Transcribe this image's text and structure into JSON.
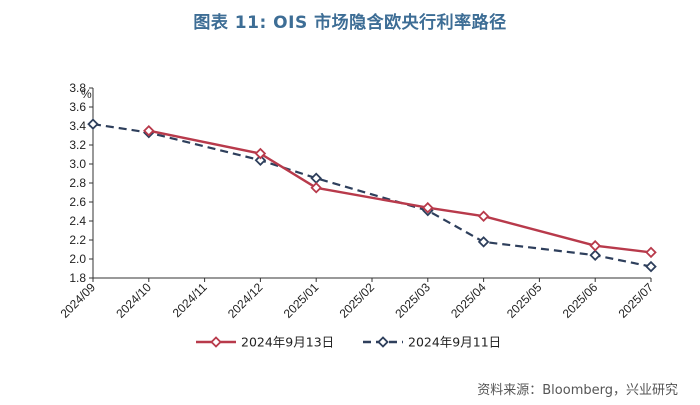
{
  "title": "图表 11: OIS 市场隐含欧央行利率路径",
  "source": "资料来源：Bloomberg，兴业研究",
  "chart_data": {
    "type": "line",
    "title": "图表 11: OIS 市场隐含欧央行利率路径",
    "ylabel": "%",
    "xlabel": "",
    "categories": [
      "2024/09",
      "2024/10",
      "2024/11",
      "2024/12",
      "2025/01",
      "2025/02",
      "2025/03",
      "2025/04",
      "2025/05",
      "2025/06",
      "2025/07"
    ],
    "ylim": [
      1.8,
      3.8
    ],
    "ytick_step": 0.2,
    "grid": false,
    "legend_position": "bottom",
    "series": [
      {
        "name": "2024年9月13日",
        "color": "#b83a4b",
        "style": "solid",
        "marker": "diamond-open",
        "points": [
          {
            "x": "2024/10",
            "y": 3.35
          },
          {
            "x": "2024/12",
            "y": 3.11
          },
          {
            "x": "2025/01",
            "y": 2.75
          },
          {
            "x": "2025/03",
            "y": 2.54
          },
          {
            "x": "2025/04",
            "y": 2.45
          },
          {
            "x": "2025/06",
            "y": 2.14
          },
          {
            "x": "2025/07",
            "y": 2.07
          }
        ]
      },
      {
        "name": "2024年9月11日",
        "color": "#2e3f5c",
        "style": "dashed",
        "marker": "diamond-open",
        "points": [
          {
            "x": "2024/09",
            "y": 3.42
          },
          {
            "x": "2024/10",
            "y": 3.33
          },
          {
            "x": "2024/12",
            "y": 3.04
          },
          {
            "x": "2025/01",
            "y": 2.85
          },
          {
            "x": "2025/03",
            "y": 2.51
          },
          {
            "x": "2025/04",
            "y": 2.18
          },
          {
            "x": "2025/06",
            "y": 2.04
          },
          {
            "x": "2025/07",
            "y": 1.92
          }
        ]
      }
    ]
  }
}
